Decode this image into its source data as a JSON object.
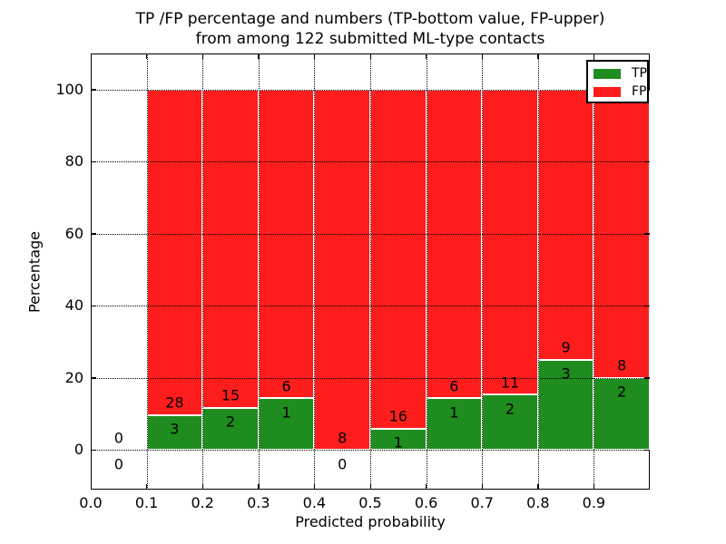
{
  "title": {
    "line1": "TP /FP percentage and numbers (TP-bottom value, FP-upper)",
    "line2": "from among 122 submitted ML-type contacts"
  },
  "axes": {
    "xlabel": "Predicted probability",
    "ylabel": "Percentage"
  },
  "legend": {
    "items": [
      {
        "label": "TP",
        "color": "#1e8c1e"
      },
      {
        "label": "FP",
        "color": "#fd1d1d"
      }
    ]
  },
  "chart_data": {
    "type": "bar",
    "variant": "stacked-percentage",
    "title": "TP /FP percentage and numbers (TP-bottom value, FP-upper) from among 122 submitted ML-type contacts",
    "xlabel": "Predicted probability",
    "ylabel": "Percentage",
    "total_contacts": 122,
    "bin_width": 0.1,
    "bin_starts": [
      0.0,
      0.1,
      0.2,
      0.3,
      0.4,
      0.5,
      0.6,
      0.7,
      0.8,
      0.9
    ],
    "series": [
      {
        "name": "TP",
        "color": "#1e8c1e",
        "counts": [
          0,
          3,
          2,
          1,
          0,
          1,
          1,
          2,
          3,
          2
        ]
      },
      {
        "name": "FP",
        "color": "#fd1d1d",
        "counts": [
          0,
          28,
          15,
          6,
          8,
          16,
          6,
          11,
          9,
          8
        ]
      }
    ],
    "tp_percent": [
      0,
      9.68,
      11.76,
      14.29,
      0,
      5.88,
      14.29,
      15.38,
      25.0,
      20.0
    ],
    "x_tick_labels": [
      "0.0",
      "0.1",
      "0.2",
      "0.3",
      "0.4",
      "0.5",
      "0.6",
      "0.7",
      "0.8",
      "0.9"
    ],
    "y_ticks": [
      0,
      20,
      40,
      60,
      80,
      100
    ],
    "xlim": [
      0.0,
      1.0
    ],
    "ylim": [
      -11,
      110
    ],
    "grid": "dotted, drawn above bars",
    "legend_position": "upper right",
    "label_note": "FP count printed above TP/FP boundary, TP count printed below it"
  }
}
